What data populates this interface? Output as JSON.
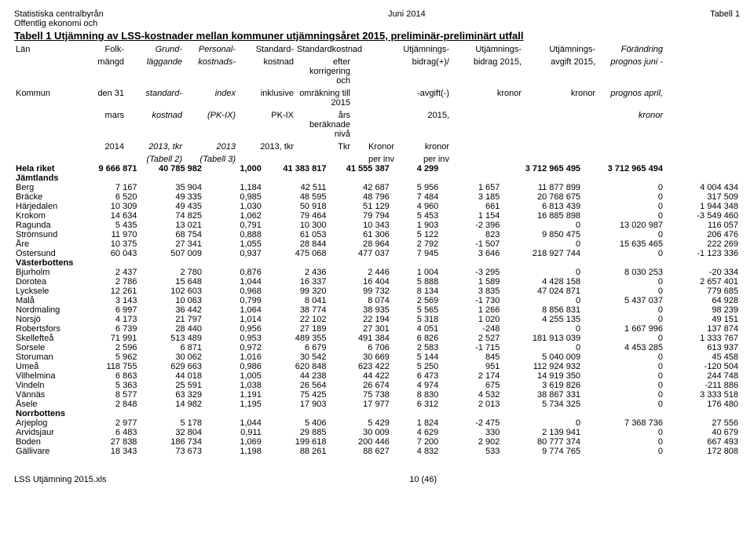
{
  "header": {
    "org1": "Statistiska centralbyrån",
    "org2": "Offentlig ekonomi och",
    "month": "Juni 2014",
    "tabell": "Tabell 1",
    "title": "Tabell 1   Utjämning av LSS-kostnader mellan kommuner utjämningsåret 2015, preliminär-preliminärt utfall"
  },
  "colheads": [
    [
      "Län",
      "Folk-",
      "Grund-",
      "Personal-",
      "Standard-",
      "Standardkostnad",
      "",
      "Utjämnings-",
      "Utjämnings-",
      "Utjämnings-",
      "Förändring"
    ],
    [
      "",
      "mängd",
      "läggande",
      "kostnads-",
      "kostnad",
      "efter korrigering och",
      "",
      "bidrag(+)/",
      "bidrag 2015,",
      "avgift 2015,",
      "prognos juni -"
    ],
    [
      "Kommun",
      "den 31",
      "standard-",
      "index",
      "inklusive",
      "omräkning till 2015",
      "",
      "-avgift(-)",
      "kronor",
      "kronor",
      "prognos april,"
    ],
    [
      "",
      "mars",
      "kostnad",
      "(PK-IX)",
      "PK-IX",
      "års beräknade nivå",
      "",
      "2015,",
      "",
      "",
      "kronor"
    ],
    [
      "",
      "2014",
      "2013, tkr",
      "2013",
      "2013, tkr",
      "Tkr",
      "Kronor",
      "kronor",
      "",
      "",
      ""
    ],
    [
      "",
      "",
      "(Tabell 2)",
      "(Tabell 3)",
      "",
      "",
      "per inv",
      "per inv",
      "",
      "",
      ""
    ]
  ],
  "totals": {
    "label": "Hela riket",
    "cells": [
      "9 666 871",
      "40 785 982",
      "1,000",
      "41 383 817",
      "41 555 387",
      "4 299",
      "",
      "3 712 965 495",
      "3 712 965 494",
      ""
    ]
  },
  "groups": [
    {
      "name": "Jämtlands",
      "rows": [
        [
          "Berg",
          "7 167",
          "35 904",
          "1,184",
          "42 511",
          "42 687",
          "5 956",
          "1 657",
          "11 877 899",
          "0",
          "4 004 434"
        ],
        [
          "Bräcke",
          "6 520",
          "49 335",
          "0,985",
          "48 595",
          "48 796",
          "7 484",
          "3 185",
          "20 768 675",
          "0",
          "317 509"
        ],
        [
          "Härjedalen",
          "10 309",
          "49 435",
          "1,030",
          "50 918",
          "51 129",
          "4 960",
          "661",
          "6 813 439",
          "0",
          "1 944 348"
        ],
        [
          "Krokom",
          "14 634",
          "74 825",
          "1,062",
          "79 464",
          "79 794",
          "5 453",
          "1 154",
          "16 885 898",
          "0",
          "-3 549 460"
        ],
        [
          "Ragunda",
          "5 435",
          "13 021",
          "0,791",
          "10 300",
          "10 343",
          "1 903",
          "-2 396",
          "0",
          "13 020 987",
          "116 057"
        ],
        [
          "Strömsund",
          "11 970",
          "68 754",
          "0,888",
          "61 053",
          "61 306",
          "5 122",
          "823",
          "9 850 475",
          "0",
          "206 476"
        ],
        [
          "Åre",
          "10 375",
          "27 341",
          "1,055",
          "28 844",
          "28 964",
          "2 792",
          "-1 507",
          "0",
          "15 635 465",
          "222 269"
        ],
        [
          "Östersund",
          "60 043",
          "507 009",
          "0,937",
          "475 068",
          "477 037",
          "7 945",
          "3 646",
          "218 927 744",
          "0",
          "-1 123 336"
        ]
      ]
    },
    {
      "name": "Västerbottens",
      "rows": [
        [
          "Bjurholm",
          "2 437",
          "2 780",
          "0,876",
          "2 436",
          "2 446",
          "1 004",
          "-3 295",
          "0",
          "8 030 253",
          "-20 334"
        ],
        [
          "Dorotea",
          "2 786",
          "15 648",
          "1,044",
          "16 337",
          "16 404",
          "5 888",
          "1 589",
          "4 428 158",
          "0",
          "2 657 401"
        ],
        [
          "Lycksele",
          "12 261",
          "102 603",
          "0,968",
          "99 320",
          "99 732",
          "8 134",
          "3 835",
          "47 024 871",
          "0",
          "779 685"
        ],
        [
          "Malå",
          "3 143",
          "10 063",
          "0,799",
          "8 041",
          "8 074",
          "2 569",
          "-1 730",
          "0",
          "5 437 037",
          "64 928"
        ],
        [
          "Nordmaling",
          "6 997",
          "36 442",
          "1,064",
          "38 774",
          "38 935",
          "5 565",
          "1 266",
          "8 856 831",
          "0",
          "98 239"
        ],
        [
          "Norsjö",
          "4 173",
          "21 797",
          "1,014",
          "22 102",
          "22 194",
          "5 318",
          "1 020",
          "4 255 135",
          "0",
          "49 151"
        ],
        [
          "Robertsfors",
          "6 739",
          "28 440",
          "0,956",
          "27 189",
          "27 301",
          "4 051",
          "-248",
          "0",
          "1 667 996",
          "137 874"
        ],
        [
          "Skellefteå",
          "71 991",
          "513 489",
          "0,953",
          "489 355",
          "491 384",
          "6 826",
          "2 527",
          "181 913 039",
          "0",
          "1 333 767"
        ],
        [
          "Sorsele",
          "2 596",
          "6 871",
          "0,972",
          "6 679",
          "6 706",
          "2 583",
          "-1 715",
          "0",
          "4 453 285",
          "613 937"
        ],
        [
          "Storuman",
          "5 962",
          "30 062",
          "1,016",
          "30 542",
          "30 669",
          "5 144",
          "845",
          "5 040 009",
          "0",
          "45 458"
        ],
        [
          "Umeå",
          "118 755",
          "629 663",
          "0,986",
          "620 848",
          "623 422",
          "5 250",
          "951",
          "112 924 932",
          "0",
          "-120 504"
        ],
        [
          "Vilhelmina",
          "6 863",
          "44 018",
          "1,005",
          "44 238",
          "44 422",
          "6 473",
          "2 174",
          "14 919 350",
          "0",
          "244 748"
        ],
        [
          "Vindeln",
          "5 363",
          "25 591",
          "1,038",
          "26 564",
          "26 674",
          "4 974",
          "675",
          "3 619 826",
          "0",
          "-211 886"
        ],
        [
          "Vännäs",
          "8 577",
          "63 329",
          "1,191",
          "75 425",
          "75 738",
          "8 830",
          "4 532",
          "38 867 331",
          "0",
          "3 333 518"
        ],
        [
          "Åsele",
          "2 848",
          "14 982",
          "1,195",
          "17 903",
          "17 977",
          "6 312",
          "2 013",
          "5 734 325",
          "0",
          "176 480"
        ]
      ]
    },
    {
      "name": "Norrbottens",
      "rows": [
        [
          "Arjeplog",
          "2 977",
          "5 178",
          "1,044",
          "5 406",
          "5 429",
          "1 824",
          "-2 475",
          "0",
          "7 368 736",
          "27 556"
        ],
        [
          "Arvidsjaur",
          "6 483",
          "32 804",
          "0,911",
          "29 885",
          "30 009",
          "4 629",
          "330",
          "2 139 941",
          "0",
          "40 679"
        ],
        [
          "Boden",
          "27 838",
          "186 734",
          "1,069",
          "199 618",
          "200 446",
          "7 200",
          "2 902",
          "80 777 374",
          "0",
          "667 493"
        ],
        [
          "Gällivare",
          "18 343",
          "73 673",
          "1,198",
          "88 261",
          "88 627",
          "4 832",
          "533",
          "9 774 765",
          "0",
          "172 808"
        ]
      ]
    }
  ],
  "footer": {
    "file": "LSS Utjämning 2015.xls",
    "page": "10 (46)"
  },
  "italic_cols": [
    2,
    3,
    10
  ],
  "colwidths": [
    "78px",
    "64px",
    "74px",
    "68px",
    "74px",
    "72px",
    "56px",
    "70px",
    "92px",
    "94px",
    "86px"
  ]
}
